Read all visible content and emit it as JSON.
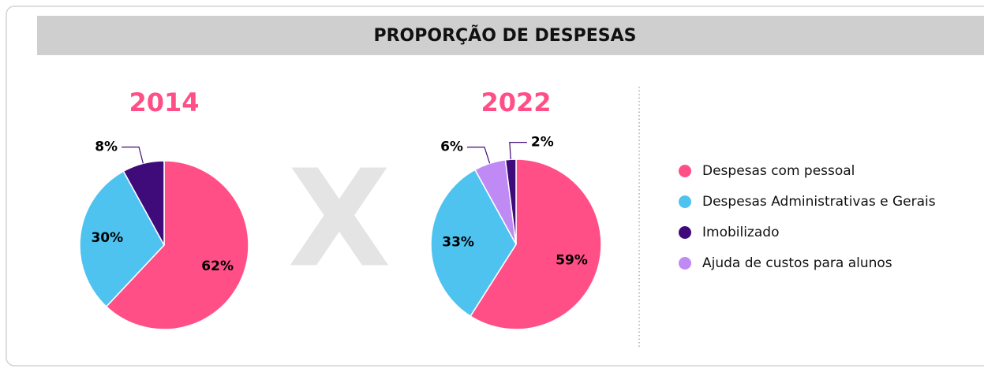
{
  "title": "PROPORÇÃO DE DESPESAS",
  "separator": "X",
  "legend": {
    "labels": [
      "Despesas com pessoal",
      "Despesas Administrativas e Gerais",
      "Imobilizado",
      "Ajuda de custos para alunos"
    ],
    "colors": [
      "#ff4f86",
      "#4fc3f0",
      "#3f0a7a",
      "#c08af5"
    ]
  },
  "chart_data": [
    {
      "type": "pie",
      "title": "2014",
      "values": [
        62,
        30,
        8
      ],
      "value_labels": [
        "62%",
        "30%",
        "8%"
      ],
      "colors": [
        "#ff4f86",
        "#4fc3f0",
        "#3f0a7a"
      ]
    },
    {
      "type": "pie",
      "title": "2022",
      "values": [
        59,
        33,
        6,
        2
      ],
      "value_labels": [
        "59%",
        "33%",
        "6%",
        "2%"
      ],
      "colors": [
        "#ff4f86",
        "#4fc3f0",
        "#c08af5",
        "#3f0a7a"
      ]
    }
  ]
}
